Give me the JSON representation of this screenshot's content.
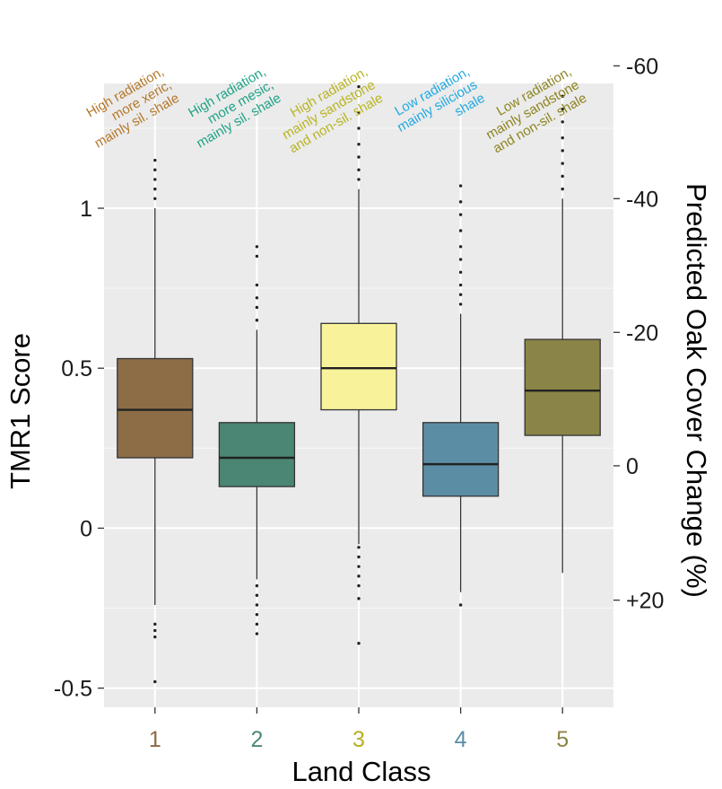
{
  "chart_data": {
    "type": "box",
    "xlabel": "Land Class",
    "ylabel": "TMR1 Score",
    "ylabel_right": "Predicted Oak Cover Change (%)",
    "ylim": [
      -0.56,
      1.39
    ],
    "y_ticks": [
      -0.5,
      0,
      0.5,
      1
    ],
    "y_tick_labels": [
      "-0.5",
      "0",
      "0.5",
      "1"
    ],
    "right_axis": {
      "ticks": [
        20,
        0,
        -20,
        -40,
        -60
      ],
      "tick_labels": [
        "+20",
        "0",
        "-20",
        "-40",
        "-60"
      ],
      "tmr1_at_ticks": [
        -0.225,
        0.195,
        0.612,
        1.03,
        1.445
      ]
    },
    "grid": true,
    "categories": [
      "1",
      "2",
      "3",
      "4",
      "5"
    ],
    "annotations": [
      [
        "High radiation,",
        "more xeric,",
        "mainly sil. shale"
      ],
      [
        "High radiation,",
        "more mesic,",
        "mainly sil. shale"
      ],
      [
        "High radiation,",
        "mainly sandstone",
        "and non-sil. shale"
      ],
      [
        "Low radiation,",
        "mainly silicious",
        "shale"
      ],
      [
        "Low radiation,",
        "mainly sandstone",
        "and non-sil. shale"
      ]
    ],
    "series": [
      {
        "name": "1",
        "color": "#8c6d46",
        "label_color": "#8b6a45",
        "annot_color": "#b5772a",
        "min": -0.24,
        "q1": 0.22,
        "median": 0.37,
        "q3": 0.53,
        "max": 1.0,
        "outliers": [
          -0.3,
          -0.32,
          -0.34,
          -0.48,
          1.03,
          1.06,
          1.09,
          1.12,
          1.15
        ]
      },
      {
        "name": "2",
        "color": "#4b8573",
        "label_color": "#4b8b78",
        "annot_color": "#1fa387",
        "min": -0.16,
        "q1": 0.13,
        "median": 0.22,
        "q3": 0.33,
        "max": 0.62,
        "outliers": [
          -0.18,
          -0.21,
          -0.24,
          -0.27,
          -0.3,
          -0.33,
          0.65,
          0.69,
          0.72,
          0.76,
          0.85,
          0.88
        ]
      },
      {
        "name": "3",
        "color": "#f8f39a",
        "label_color": "#b8b024",
        "annot_color": "#b9b424",
        "min": -0.05,
        "q1": 0.37,
        "median": 0.5,
        "q3": 0.64,
        "max": 1.06,
        "outliers": [
          -0.06,
          -0.09,
          -0.12,
          -0.15,
          -0.18,
          -0.22,
          -0.36,
          1.09,
          1.12,
          1.16,
          1.2,
          1.25,
          1.3,
          1.38
        ]
      },
      {
        "name": "4",
        "color": "#5b8ea5",
        "label_color": "#5a8ea8",
        "annot_color": "#22a9e1",
        "min": -0.2,
        "q1": 0.1,
        "median": 0.2,
        "q3": 0.33,
        "max": 0.67,
        "outliers": [
          -0.24,
          0.7,
          0.73,
          0.76,
          0.8,
          0.84,
          0.88,
          0.93,
          0.98,
          1.02,
          1.07
        ]
      },
      {
        "name": "5",
        "color": "#8a8447",
        "label_color": "#8a8443",
        "annot_color": "#8d8420",
        "min": -0.14,
        "q1": 0.29,
        "median": 0.43,
        "q3": 0.59,
        "max": 1.03,
        "outliers": [
          1.06,
          1.1,
          1.14,
          1.18,
          1.22,
          1.27,
          1.31,
          1.35
        ]
      }
    ]
  }
}
